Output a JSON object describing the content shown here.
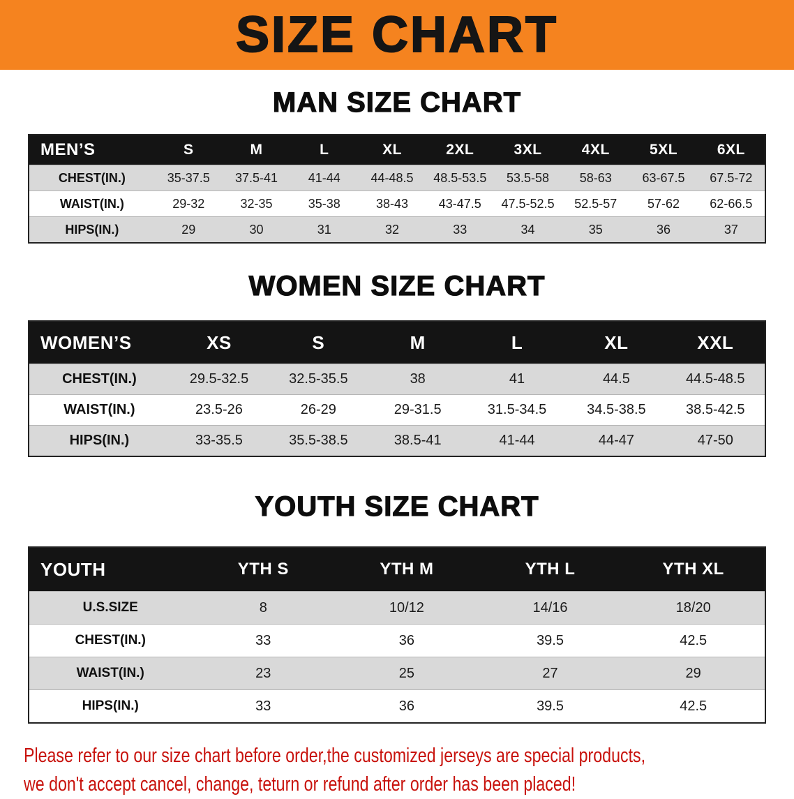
{
  "banner": {
    "title": "SIZE CHART",
    "bg_color": "#f5831f"
  },
  "sections": [
    {
      "id": "men",
      "heading": "MAN SIZE CHART",
      "table": {
        "header": [
          "MEN’S",
          "S",
          "M",
          "L",
          "XL",
          "2XL",
          "3XL",
          "4XL",
          "5XL",
          "6XL"
        ],
        "rows": [
          [
            "CHEST(IN.)",
            "35-37.5",
            "37.5-41",
            "41-44",
            "44-48.5",
            "48.5-53.5",
            "53.5-58",
            "58-63",
            "63-67.5",
            "67.5-72"
          ],
          [
            "WAIST(IN.)",
            "29-32",
            "32-35",
            "35-38",
            "38-43",
            "43-47.5",
            "47.5-52.5",
            "52.5-57",
            "57-62",
            "62-66.5"
          ],
          [
            "HIPS(IN.)",
            "29",
            "30",
            "31",
            "32",
            "33",
            "34",
            "35",
            "36",
            "37"
          ]
        ]
      }
    },
    {
      "id": "women",
      "heading": "WOMEN SIZE CHART",
      "table": {
        "header": [
          "WOMEN’S",
          "XS",
          "S",
          "M",
          "L",
          "XL",
          "XXL"
        ],
        "rows": [
          [
            "CHEST(IN.)",
            "29.5-32.5",
            "32.5-35.5",
            "38",
            "41",
            "44.5",
            "44.5-48.5"
          ],
          [
            "WAIST(IN.)",
            "23.5-26",
            "26-29",
            "29-31.5",
            "31.5-34.5",
            "34.5-38.5",
            "38.5-42.5"
          ],
          [
            "HIPS(IN.)",
            "33-35.5",
            "35.5-38.5",
            "38.5-41",
            "41-44",
            "44-47",
            "47-50"
          ]
        ]
      }
    },
    {
      "id": "youth",
      "heading": "YOUTH SIZE CHART",
      "table": {
        "header": [
          "YOUTH",
          "YTH S",
          "YTH M",
          "YTH L",
          "YTH XL"
        ],
        "rows": [
          [
            "U.S.SIZE",
            "8",
            "10/12",
            "14/16",
            "18/20"
          ],
          [
            "CHEST(IN.)",
            "33",
            "36",
            "39.5",
            "42.5"
          ],
          [
            "WAIST(IN.)",
            "23",
            "25",
            "27",
            "29"
          ],
          [
            "HIPS(IN.)",
            "33",
            "36",
            "39.5",
            "42.5"
          ]
        ]
      }
    }
  ],
  "footer": {
    "lines": [
      "Please refer to our size chart before order,the customized jerseys are special products,",
      "we don't accept cancel, change, teturn or refund after order has been placed!"
    ],
    "text_color": "#c8120c"
  }
}
